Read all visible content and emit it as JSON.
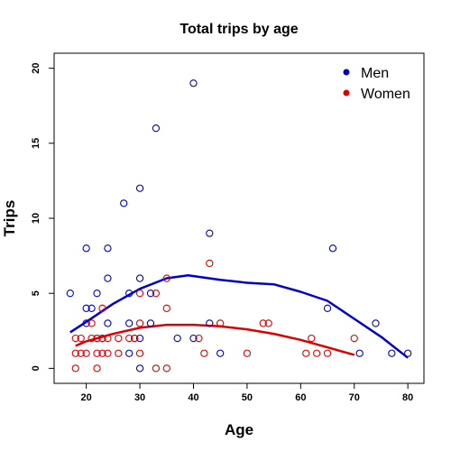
{
  "chart_data": {
    "type": "scatter",
    "title": "Total trips by age",
    "xlabel": "Age",
    "ylabel": "Trips",
    "xlim": [
      14,
      83
    ],
    "ylim": [
      -1,
      21
    ],
    "x_ticks": [
      20,
      30,
      40,
      50,
      60,
      70,
      80
    ],
    "y_ticks": [
      0,
      5,
      10,
      15,
      20
    ],
    "grid": false,
    "legend_position": "top-right",
    "series": [
      {
        "name": "Men",
        "color": "#0000cc",
        "marker": "open-circle",
        "points": [
          [
            17,
            5
          ],
          [
            20,
            8
          ],
          [
            20,
            4
          ],
          [
            20,
            3
          ],
          [
            21,
            4
          ],
          [
            22,
            5
          ],
          [
            22,
            2
          ],
          [
            23,
            2
          ],
          [
            24,
            8
          ],
          [
            24,
            6
          ],
          [
            24,
            3
          ],
          [
            27,
            11
          ],
          [
            28,
            5
          ],
          [
            28,
            3
          ],
          [
            28,
            1
          ],
          [
            29,
            2
          ],
          [
            30,
            12
          ],
          [
            30,
            6
          ],
          [
            30,
            2
          ],
          [
            30,
            0
          ],
          [
            32,
            5
          ],
          [
            32,
            3
          ],
          [
            33,
            16
          ],
          [
            37,
            2
          ],
          [
            40,
            19
          ],
          [
            40,
            2
          ],
          [
            43,
            9
          ],
          [
            43,
            3
          ],
          [
            45,
            1
          ],
          [
            65,
            4
          ],
          [
            66,
            8
          ],
          [
            71,
            1
          ],
          [
            74,
            3
          ],
          [
            77,
            1
          ],
          [
            80,
            1
          ]
        ],
        "smooth_line": [
          [
            17,
            2.4
          ],
          [
            20,
            3.1
          ],
          [
            25,
            4.3
          ],
          [
            30,
            5.3
          ],
          [
            35,
            6.0
          ],
          [
            39,
            6.2
          ],
          [
            45,
            5.9
          ],
          [
            50,
            5.7
          ],
          [
            55,
            5.6
          ],
          [
            60,
            5.1
          ],
          [
            65,
            4.5
          ],
          [
            70,
            3.3
          ],
          [
            75,
            2.1
          ],
          [
            80,
            0.7
          ]
        ]
      },
      {
        "name": "Women",
        "color": "#dd0000",
        "marker": "open-circle",
        "points": [
          [
            18,
            2
          ],
          [
            18,
            1
          ],
          [
            18,
            0
          ],
          [
            19,
            2
          ],
          [
            19,
            1
          ],
          [
            20,
            1
          ],
          [
            21,
            3
          ],
          [
            21,
            2
          ],
          [
            22,
            2
          ],
          [
            22,
            1
          ],
          [
            22,
            0
          ],
          [
            23,
            4
          ],
          [
            23,
            2
          ],
          [
            23,
            1
          ],
          [
            24,
            2
          ],
          [
            24,
            1
          ],
          [
            26,
            2
          ],
          [
            26,
            1
          ],
          [
            28,
            2
          ],
          [
            29,
            2
          ],
          [
            30,
            5
          ],
          [
            30,
            3
          ],
          [
            30,
            1
          ],
          [
            33,
            5
          ],
          [
            33,
            0
          ],
          [
            35,
            6
          ],
          [
            35,
            4
          ],
          [
            35,
            0
          ],
          [
            41,
            2
          ],
          [
            42,
            1
          ],
          [
            43,
            7
          ],
          [
            45,
            3
          ],
          [
            50,
            1
          ],
          [
            53,
            3
          ],
          [
            54,
            3
          ],
          [
            61,
            1
          ],
          [
            62,
            2
          ],
          [
            63,
            1
          ],
          [
            65,
            1
          ],
          [
            70,
            2
          ]
        ],
        "smooth_line": [
          [
            18,
            1.5
          ],
          [
            20,
            1.8
          ],
          [
            25,
            2.3
          ],
          [
            30,
            2.7
          ],
          [
            35,
            2.9
          ],
          [
            40,
            2.9
          ],
          [
            45,
            2.8
          ],
          [
            50,
            2.6
          ],
          [
            55,
            2.3
          ],
          [
            60,
            1.9
          ],
          [
            65,
            1.4
          ],
          [
            70,
            0.9
          ]
        ]
      }
    ]
  }
}
